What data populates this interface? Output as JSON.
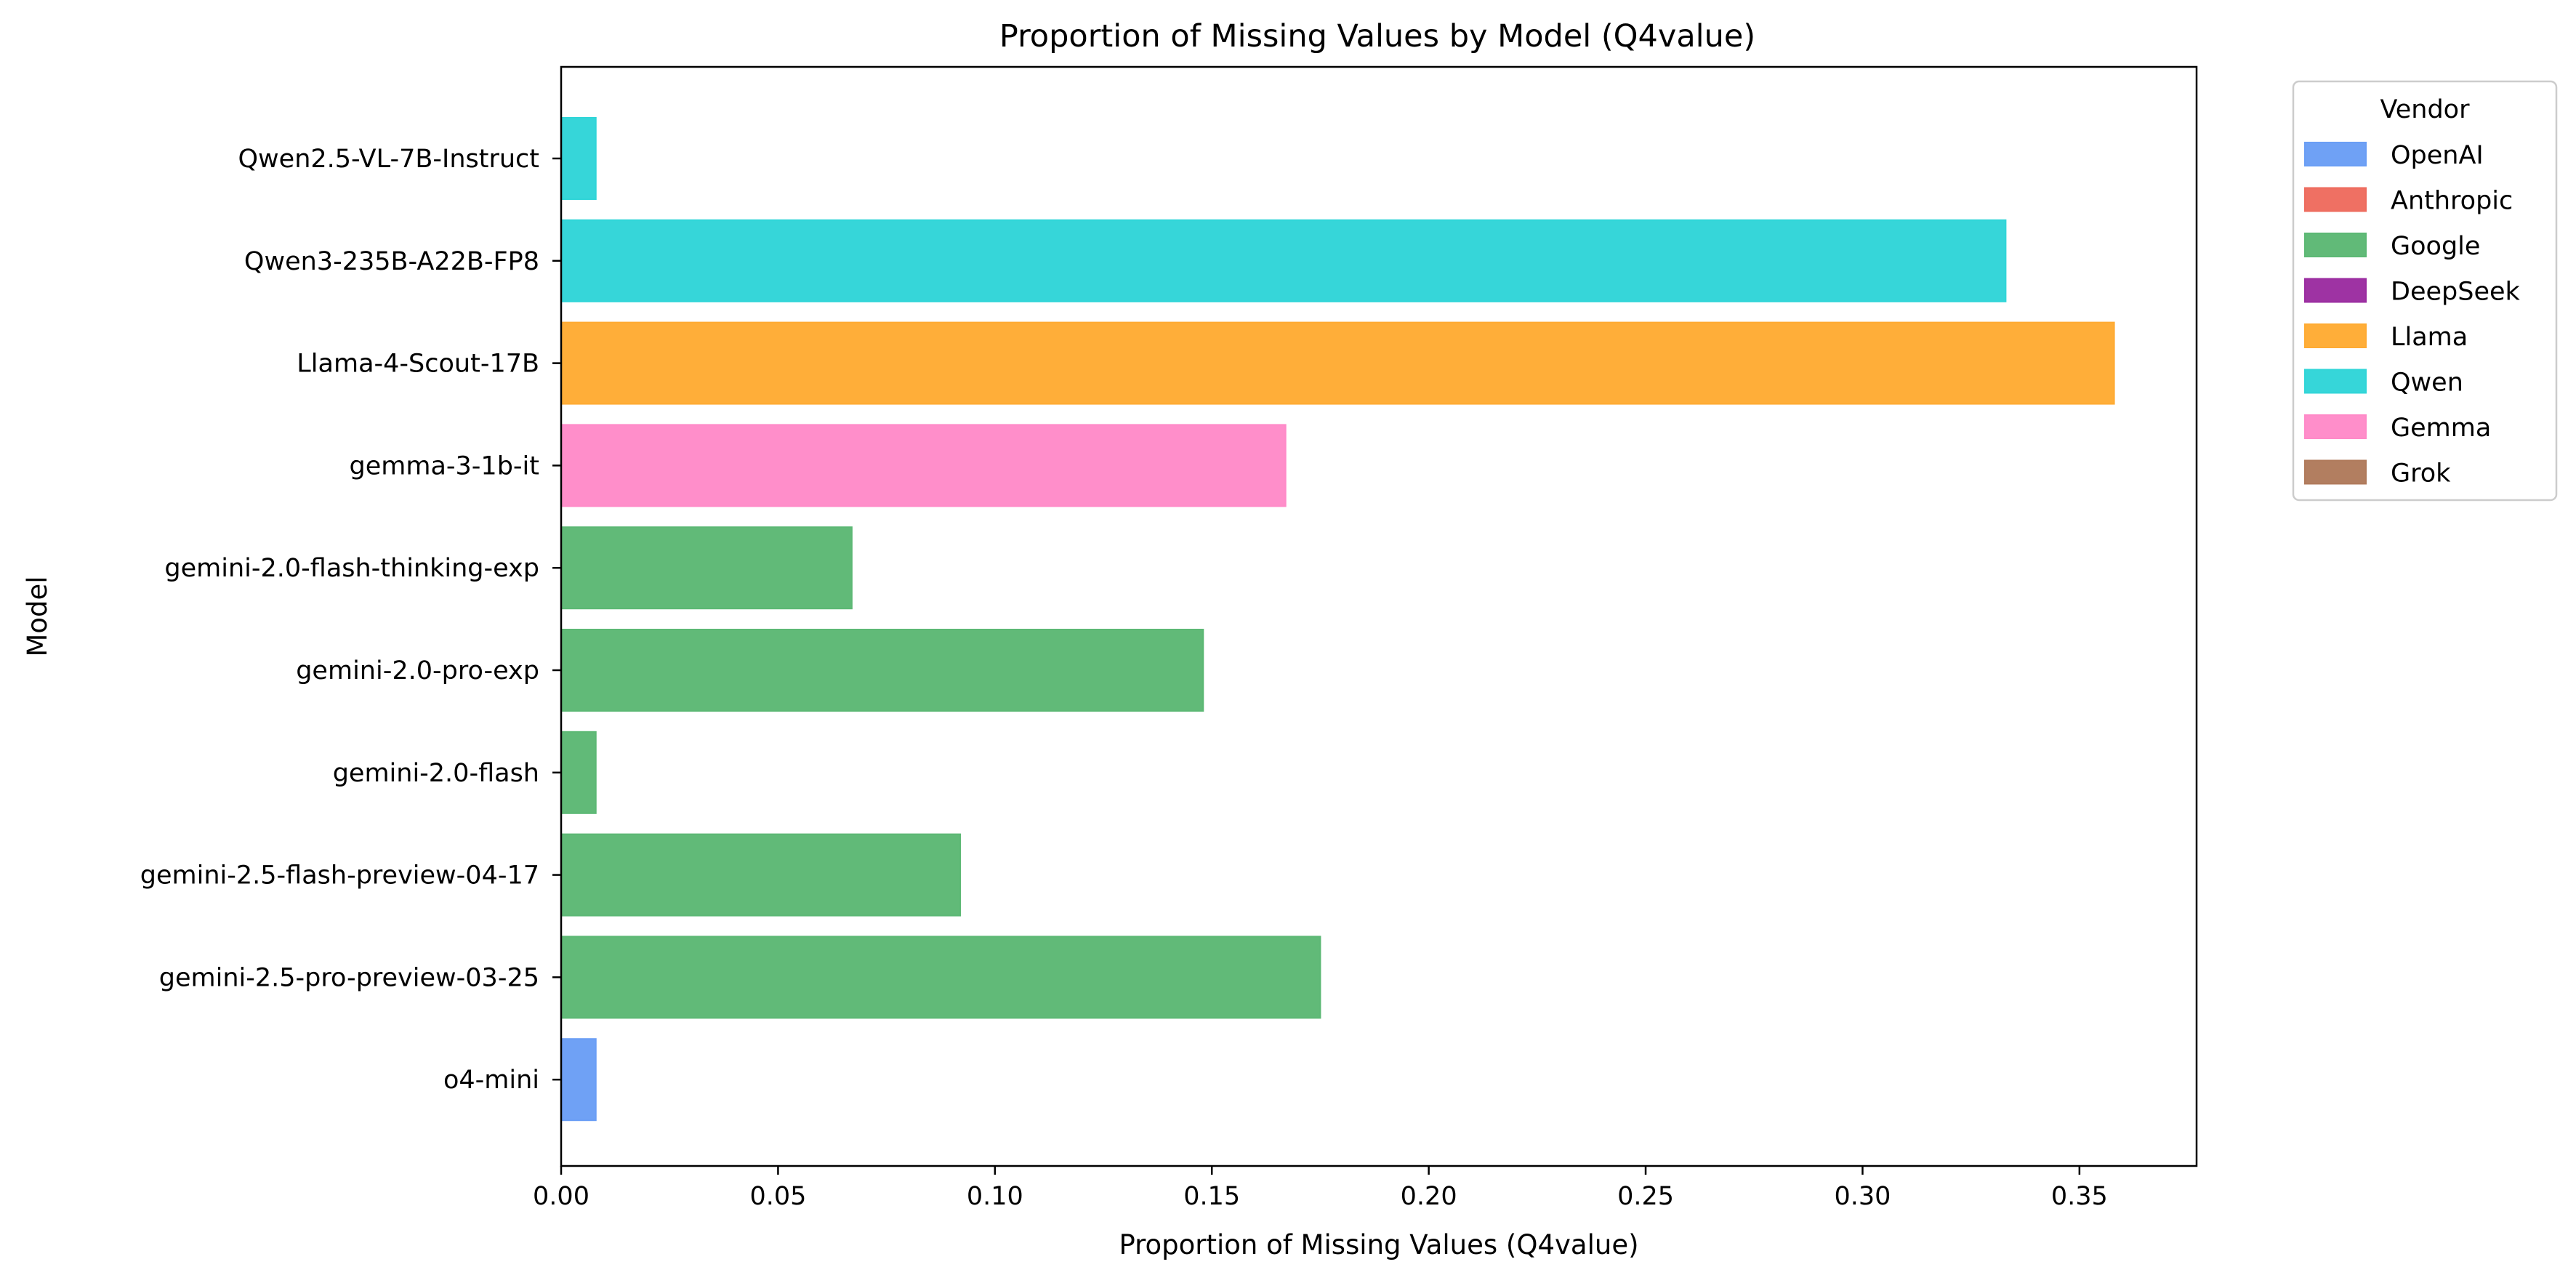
{
  "chart_data": {
    "type": "bar",
    "orientation": "horizontal",
    "title": "Proportion of Missing Values by Model (Q4value)",
    "xlabel": "Proportion of Missing Values (Q4value)",
    "ylabel": "Model",
    "xlim": [
      0,
      0.377
    ],
    "xticks": [
      "0.00",
      "0.05",
      "0.10",
      "0.15",
      "0.20",
      "0.25",
      "0.30",
      "0.35"
    ],
    "grid": false,
    "legend_placement": "outside-top-right",
    "legend_title": "Vendor",
    "legend": [
      {
        "name": "OpenAI",
        "color": "#6a9ef5"
      },
      {
        "name": "Anthropic",
        "color": "#ee6b5e"
      },
      {
        "name": "Google",
        "color": "#5cb874"
      },
      {
        "name": "DeepSeek",
        "color": "#9b2ca0"
      },
      {
        "name": "Llama",
        "color": "#ffab33"
      },
      {
        "name": "Qwen",
        "color": "#30d5d8"
      },
      {
        "name": "Gemma",
        "color": "#ff8ac8"
      },
      {
        "name": "Grok",
        "color": "#b07a5b"
      }
    ],
    "categories": [
      "Qwen2.5-VL-7B-Instruct",
      "Qwen3-235B-A22B-FP8",
      "Llama-4-Scout-17B",
      "gemma-3-1b-it",
      "gemini-2.0-flash-thinking-exp",
      "gemini-2.0-pro-exp",
      "gemini-2.0-flash",
      "gemini-2.5-flash-preview-04-17",
      "gemini-2.5-pro-preview-03-25",
      "o4-mini"
    ],
    "values": [
      0.008,
      0.333,
      0.358,
      0.167,
      0.067,
      0.148,
      0.008,
      0.092,
      0.175,
      0.008
    ],
    "vendors": [
      "Qwen",
      "Qwen",
      "Llama",
      "Gemma",
      "Google",
      "Google",
      "Google",
      "Google",
      "Google",
      "OpenAI"
    ]
  }
}
